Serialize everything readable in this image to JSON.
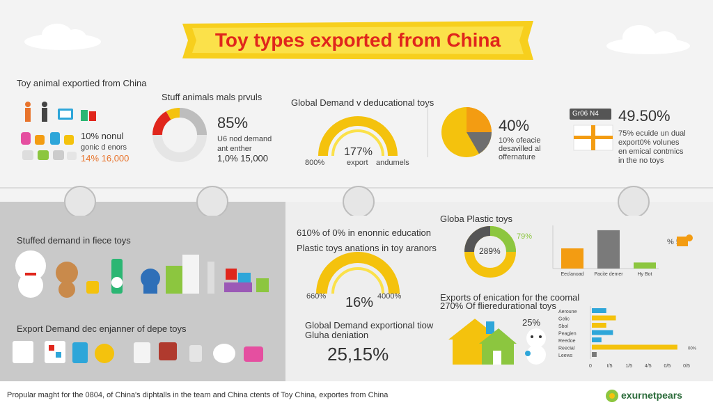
{
  "title": "Toy types exported from China",
  "top": {
    "panel1": {
      "heading": "Toy animal exportied from China",
      "line1": "10% nonul",
      "line2": "gonic d enors",
      "line3": "14% 16,000"
    },
    "panel2": {
      "heading": "Stuff animals mals prvuls",
      "big": "85%",
      "line1": "U6 nod demand",
      "line2": "ant enther",
      "line3": "1,0% 15,000"
    },
    "panel3": {
      "heading": "Global Demand v deducational toys",
      "center": "177%",
      "left": "800%",
      "right": "export",
      "right2": "andumels"
    },
    "panel4": {
      "big": "40%",
      "line1": "10% ofeacie",
      "line2": "desavilled al",
      "line3": "offernature"
    },
    "panel5": {
      "badge": "Gr06 N4",
      "big": "49.50%",
      "line1": "75% ecuide un dual",
      "line2": "export0% volunes",
      "line3": "en emical contmics",
      "line4": "in the no toys"
    }
  },
  "bottom_left": {
    "heading1": "Stuffed demand in fiece toys",
    "heading2": "Export Demand dec enjanner of depe toys"
  },
  "bottom_middle": {
    "line1": "610% of 0% in enonnic education",
    "line2": "Plastic toys anations in toy aranors",
    "gauge_left": "660%",
    "gauge_center": "16%",
    "gauge_right": "4000%",
    "line3": "Global Demand exportional tiow",
    "line4": "Gluha deniation",
    "big": "25,15%"
  },
  "bottom_right": {
    "heading": "Globa Plastic toys",
    "donut_center": "289%",
    "donut_side": "79%",
    "side_label": "% 5",
    "line1": "Exports of enication for the coomal",
    "line2": "270% Of flieredurational toys",
    "house_label": "25%"
  },
  "footer": {
    "text": "Propular maght for the 0804, of China's diphtalls in the team and China ctents of Toy China, exportes from China",
    "brand": "exurnetpears"
  },
  "colors": {
    "yellow": "#f4c20d",
    "orange": "#f39c12",
    "red": "#e0261c",
    "gray": "#7a7a7a",
    "blue": "#2ea6d9",
    "green": "#8cc63f"
  },
  "chart_data": [
    {
      "type": "bar",
      "categories": [
        "Eeclanoad",
        "Pacite demer",
        "Hy Bot"
      ],
      "values": [
        50,
        95,
        15
      ],
      "ylim": [
        0,
        100
      ]
    },
    {
      "type": "bar",
      "orientation": "horizontal",
      "categories": [
        "Aeroune",
        "Gelic",
        "Sbol",
        "Peagien",
        "Reedoe",
        "Reecial",
        "Leews"
      ],
      "values": [
        1.5,
        2.5,
        1.5,
        2.2,
        1.0,
        8.9,
        0.5
      ],
      "colors": [
        "#2ea6d9",
        "#f4c20d",
        "#f4c20d",
        "#2ea6d9",
        "#2ea6d9",
        "#f4c20d",
        "#7a7a7a"
      ],
      "x_ticks": [
        "0",
        "t/5",
        "1/5",
        "4/5",
        "0/5",
        "0/5"
      ],
      "xlim": [
        0,
        10
      ],
      "value_label": "00%"
    }
  ]
}
